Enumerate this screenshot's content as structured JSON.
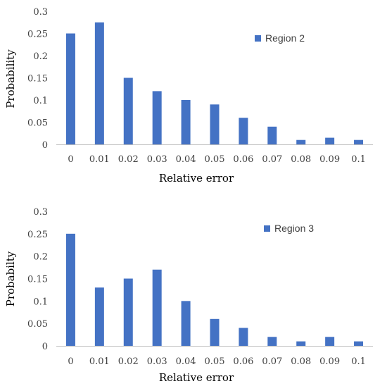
{
  "colors": {
    "bar": "#4472C4",
    "axis": "#bfbfbf",
    "text": "#404040"
  },
  "chart_data": [
    {
      "type": "bar",
      "categories": [
        "0",
        "0.01",
        "0.02",
        "0.03",
        "0.04",
        "0.05",
        "0.06",
        "0.07",
        "0.08",
        "0.09",
        "0.1"
      ],
      "series": [
        {
          "name": "Region 2",
          "values": [
            0.25,
            0.275,
            0.15,
            0.12,
            0.1,
            0.09,
            0.06,
            0.04,
            0.01,
            0.015,
            0.01
          ]
        }
      ],
      "xlabel": "Relative error",
      "ylabel": "Probability",
      "ylim": [
        0,
        0.3
      ],
      "yticks": [
        "0",
        "0.05",
        "0.1",
        "0.15",
        "0.2",
        "0.25",
        "0.3"
      ],
      "legend": "top-right",
      "grid": false
    },
    {
      "type": "bar",
      "categories": [
        "0",
        "0.01",
        "0.02",
        "0.03",
        "0.04",
        "0.05",
        "0.06",
        "0.07",
        "0.08",
        "0.09",
        "0.1"
      ],
      "series": [
        {
          "name": "Region 3",
          "values": [
            0.25,
            0.13,
            0.15,
            0.17,
            0.1,
            0.06,
            0.04,
            0.02,
            0.01,
            0.02,
            0.01
          ]
        }
      ],
      "xlabel": "Relative error",
      "ylabel": "Probabilty",
      "ylim": [
        0,
        0.3
      ],
      "yticks": [
        "0",
        "0.05",
        "0.1",
        "0.15",
        "0.2",
        "0.25",
        "0.3"
      ],
      "legend": "top-right",
      "grid": false
    }
  ]
}
